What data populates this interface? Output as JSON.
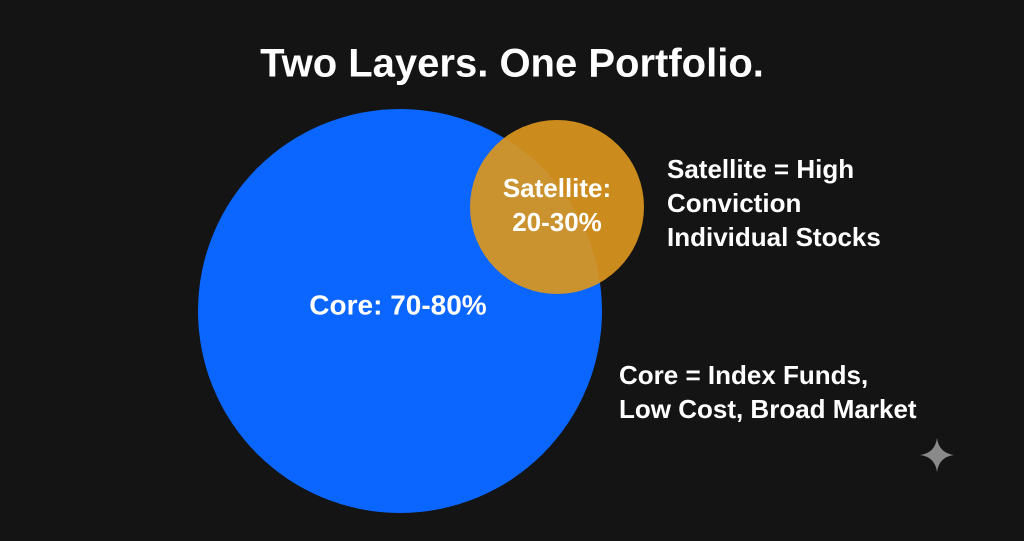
{
  "title": "Two Layers. One Portfolio.",
  "core": {
    "label": "Core: 70-80%",
    "description": [
      "Core = Index Funds,",
      "Low Cost, Broad Market"
    ]
  },
  "satellite": {
    "label": [
      "Satellite:",
      "20-30%"
    ],
    "description": [
      "Satellite = High",
      "Conviction",
      "Individual Stocks"
    ]
  }
}
